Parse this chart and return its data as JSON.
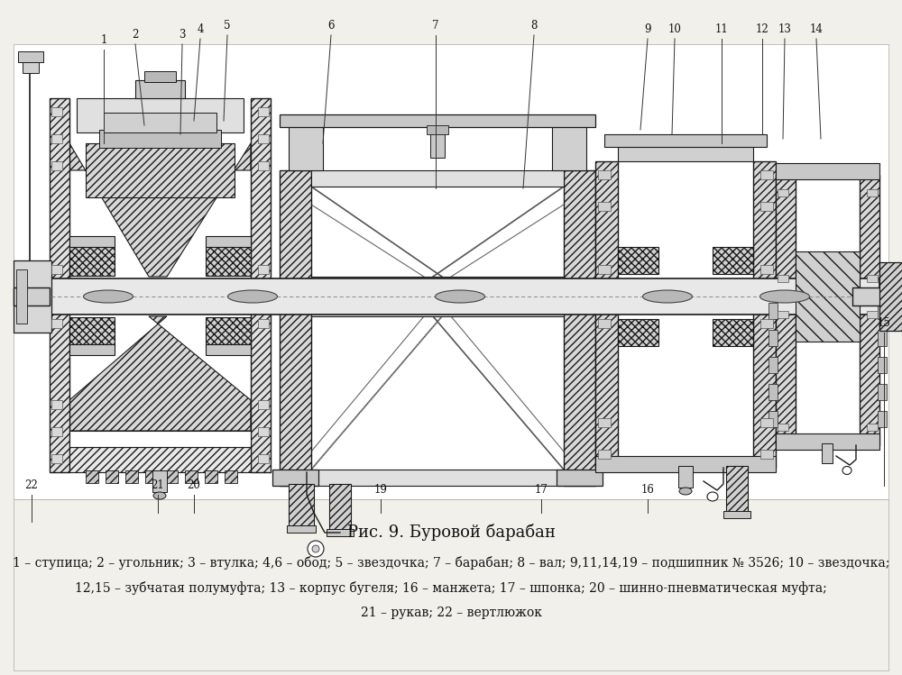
{
  "bg_color": "#f2f0eb",
  "draw_bg": "#ffffff",
  "line_color": "#1a1a1a",
  "hatch_color": "#333333",
  "fill_light": "#e8e8e8",
  "fill_mid": "#d0d0d0",
  "fill_dark": "#b0b0b0",
  "title": "Рис. 9. Буровой барабан",
  "caption1": "1 – ступица; 2 – угольник; 3 – втулка; 4,6 – обод; 5 – звездочка; 7 – барабан; 8 – вал; 9,11,14,19 – подшипник № 3526; 10 – звездочка;",
  "caption2": "12,15 – зубчатая полумуфта; 13 – корпус бугеля; 16 – манжета; 17 – шпонка; 20 – шинно-пневматическая муфта;",
  "caption3": "21 – рукав; 22 – вертлюжок",
  "title_fontsize": 13,
  "caption_fontsize": 10
}
